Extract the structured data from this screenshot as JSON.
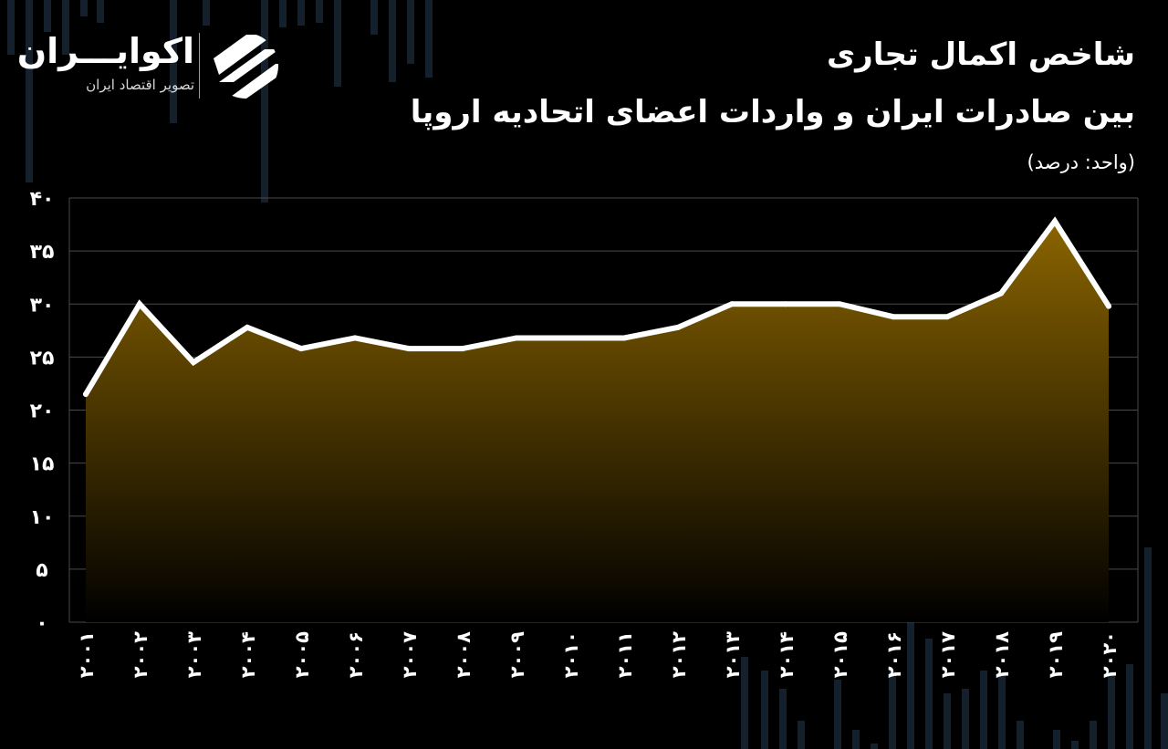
{
  "brand": {
    "name": "اکوایـــران",
    "tagline": "تصویر اقتصاد ایران"
  },
  "header": {
    "title_line1": "شاخص اکمال تجاری",
    "title_line2": "بین صادرات ایران و واردات اعضای اتحادیه اروپا",
    "unit": "(واحد: درصد)"
  },
  "colors": {
    "background": "#000000",
    "line": "#ffffff",
    "fill_top": "#8a6400",
    "fill_bottom": "#000000",
    "grid": "#4a4a4a"
  },
  "chart_data": {
    "type": "area",
    "title": "شاخص اکمال تجاری بین صادرات ایران و واردات اعضای اتحادیه اروپا",
    "unit": "(واحد: درصد)",
    "xlabel": "",
    "ylabel": "",
    "x": [
      "۲۰۰۱",
      "۲۰۰۲",
      "۲۰۰۳",
      "۲۰۰۴",
      "۲۰۰۵",
      "۲۰۰۶",
      "۲۰۰۷",
      "۲۰۰۸",
      "۲۰۰۹",
      "۲۰۱۰",
      "۲۰۱۱",
      "۲۰۱۲",
      "۲۰۱۳",
      "۲۰۱۴",
      "۲۰۱۵",
      "۲۰۱۶",
      "۲۰۱۷",
      "۲۰۱۸",
      "۲۰۱۹",
      "۲۰۲۰"
    ],
    "values": [
      21.5,
      30,
      24.5,
      27.8,
      25.8,
      26.8,
      25.8,
      25.8,
      26.8,
      26.8,
      26.8,
      27.8,
      30,
      30,
      30,
      28.8,
      28.8,
      31,
      37.8,
      29.8
    ],
    "y_ticks": [
      "۰",
      "۵",
      "۱۰",
      "۱۵",
      "۲۰",
      "۲۵",
      "۳۰",
      "۳۵",
      "۴۰"
    ],
    "ylim": [
      0,
      40
    ],
    "grid": true,
    "legend": "none"
  }
}
